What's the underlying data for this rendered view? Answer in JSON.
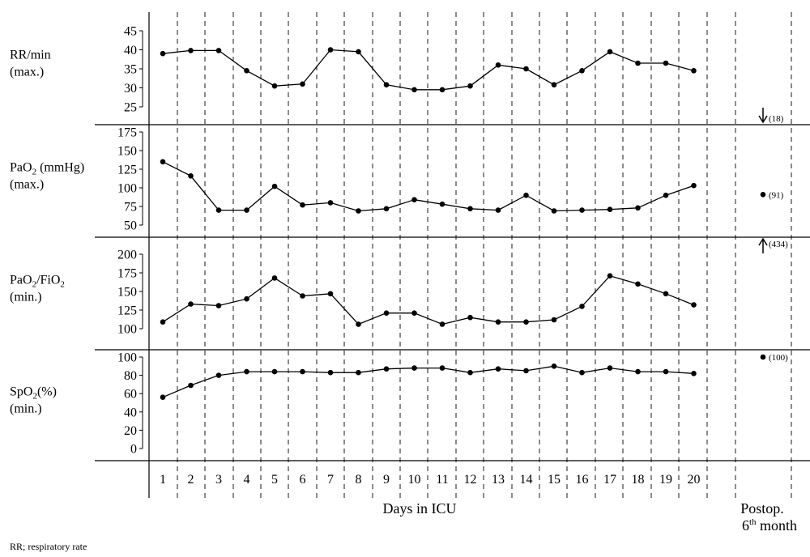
{
  "chart_data": {
    "type": "line",
    "x_label": "Days in ICU",
    "x": [
      1,
      2,
      3,
      4,
      5,
      6,
      7,
      8,
      9,
      10,
      11,
      12,
      13,
      14,
      15,
      16,
      17,
      18,
      19,
      20
    ],
    "postop_label_line1": "Postop.",
    "postop_label_line2_num": "6",
    "postop_label_line2_sup": "th",
    "postop_label_line2_word": " month",
    "footnote": "RR; respiratory rate",
    "grid": "vertical dashed",
    "panels": [
      {
        "label_main": "RR/min",
        "label_sub": "",
        "label_tail": "",
        "label_line2": "(max.)",
        "ylim": [
          25,
          45
        ],
        "yticks": [
          25,
          30,
          35,
          40,
          45
        ],
        "values": [
          39,
          39.8,
          39.8,
          34.5,
          30.5,
          31,
          40,
          39.5,
          30.8,
          29.5,
          29.5,
          30.5,
          36,
          35,
          30.8,
          34.5,
          39.5,
          36.5,
          36.5,
          34.5
        ],
        "postop": {
          "value": 18,
          "text": "(18)",
          "marker": "arrow-down"
        }
      },
      {
        "label_main": "PaO",
        "label_sub": "2",
        "label_tail": " (mmHg)",
        "label_line2": "(max.)",
        "ylim": [
          50,
          175
        ],
        "yticks": [
          50,
          75,
          100,
          125,
          150,
          175
        ],
        "values": [
          135,
          116,
          70,
          70,
          102,
          77,
          80,
          69,
          72,
          84,
          78,
          72,
          70,
          90,
          69,
          70,
          71,
          73,
          90,
          103
        ],
        "postop": {
          "value": 91,
          "text": "(91)",
          "marker": "dot"
        }
      },
      {
        "label_main": "PaO",
        "label_sub": "2",
        "label_tail": "/FiO",
        "label_sub2": "2",
        "label_line2": "(min.)",
        "ylim": [
          100,
          200
        ],
        "yticks": [
          100,
          125,
          150,
          175,
          200
        ],
        "values": [
          109,
          133,
          131,
          140,
          168,
          144,
          147,
          106,
          121,
          121,
          106,
          115,
          109,
          109,
          112,
          130,
          171,
          160,
          147,
          132
        ],
        "postop": {
          "value": 434,
          "text": "(434)",
          "marker": "arrow-up"
        }
      },
      {
        "label_main": "SpO",
        "label_sub": "2",
        "label_tail": "(%)",
        "label_line2": "(min.)",
        "ylim": [
          0,
          100
        ],
        "yticks": [
          0,
          20,
          40,
          60,
          80,
          100
        ],
        "values": [
          56,
          69,
          80,
          84,
          84,
          84,
          83,
          83,
          87,
          88,
          88,
          83,
          87,
          85,
          90,
          83,
          88,
          84,
          84,
          82
        ],
        "postop": {
          "value": 100,
          "text": "(100)",
          "marker": "dot"
        }
      }
    ]
  }
}
